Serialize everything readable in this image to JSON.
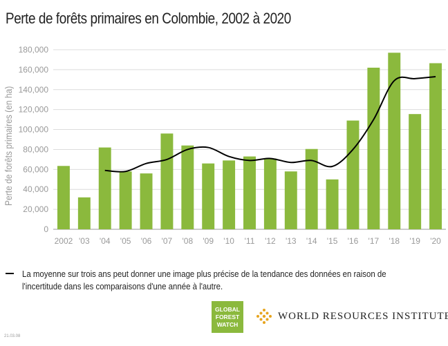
{
  "title": "Perte de forêts primaires en Colombie, 2002 à 2020",
  "legend": {
    "text": "La moyenne sur trois ans peut donner une image plus précise de la tendance des données en raison de l'incertitude dans les comparaisons d'une année à l'autre."
  },
  "logos": {
    "gfw_lines": [
      "GLOBAL",
      "FOREST",
      "WATCH"
    ],
    "wri": "WORLD RESOURCES INSTITUTE",
    "gfw_color": "#8bb93d"
  },
  "footer_date": "21.03.08",
  "chart_data": {
    "type": "bar",
    "ylabel": "Perte de forêts primaires (en ha)",
    "ylim": [
      0,
      180000
    ],
    "yticks": [
      "0",
      "20,000",
      "40,000",
      "60,000",
      "80,000",
      "100,000",
      "120,000",
      "140,000",
      "160,000",
      "180,000"
    ],
    "ytick_values": [
      0,
      20000,
      40000,
      60000,
      80000,
      100000,
      120000,
      140000,
      160000,
      180000
    ],
    "categories": [
      "2002",
      "'03",
      "'04",
      "'05",
      "'06",
      "'07",
      "'08",
      "'09",
      "'10",
      "'11",
      "'12",
      "'13",
      "'14",
      "'15",
      "'16",
      "'17",
      "'18",
      "'19",
      "'20"
    ],
    "values": [
      63500,
      32000,
      82000,
      58000,
      56000,
      96000,
      84000,
      66000,
      69000,
      73000,
      71000,
      58000,
      80500,
      50000,
      109000,
      162000,
      177000,
      115500,
      166500
    ],
    "bar_color": "#8bb93d",
    "line_series": {
      "values": [
        null,
        null,
        59000,
        58000,
        66000,
        70000,
        80000,
        82000,
        73000,
        69000,
        71000,
        67000,
        69000,
        63000,
        80000,
        110000,
        149000,
        151000,
        153000
      ],
      "color": "#000000"
    },
    "grid": true,
    "legend_position": "bottom"
  }
}
